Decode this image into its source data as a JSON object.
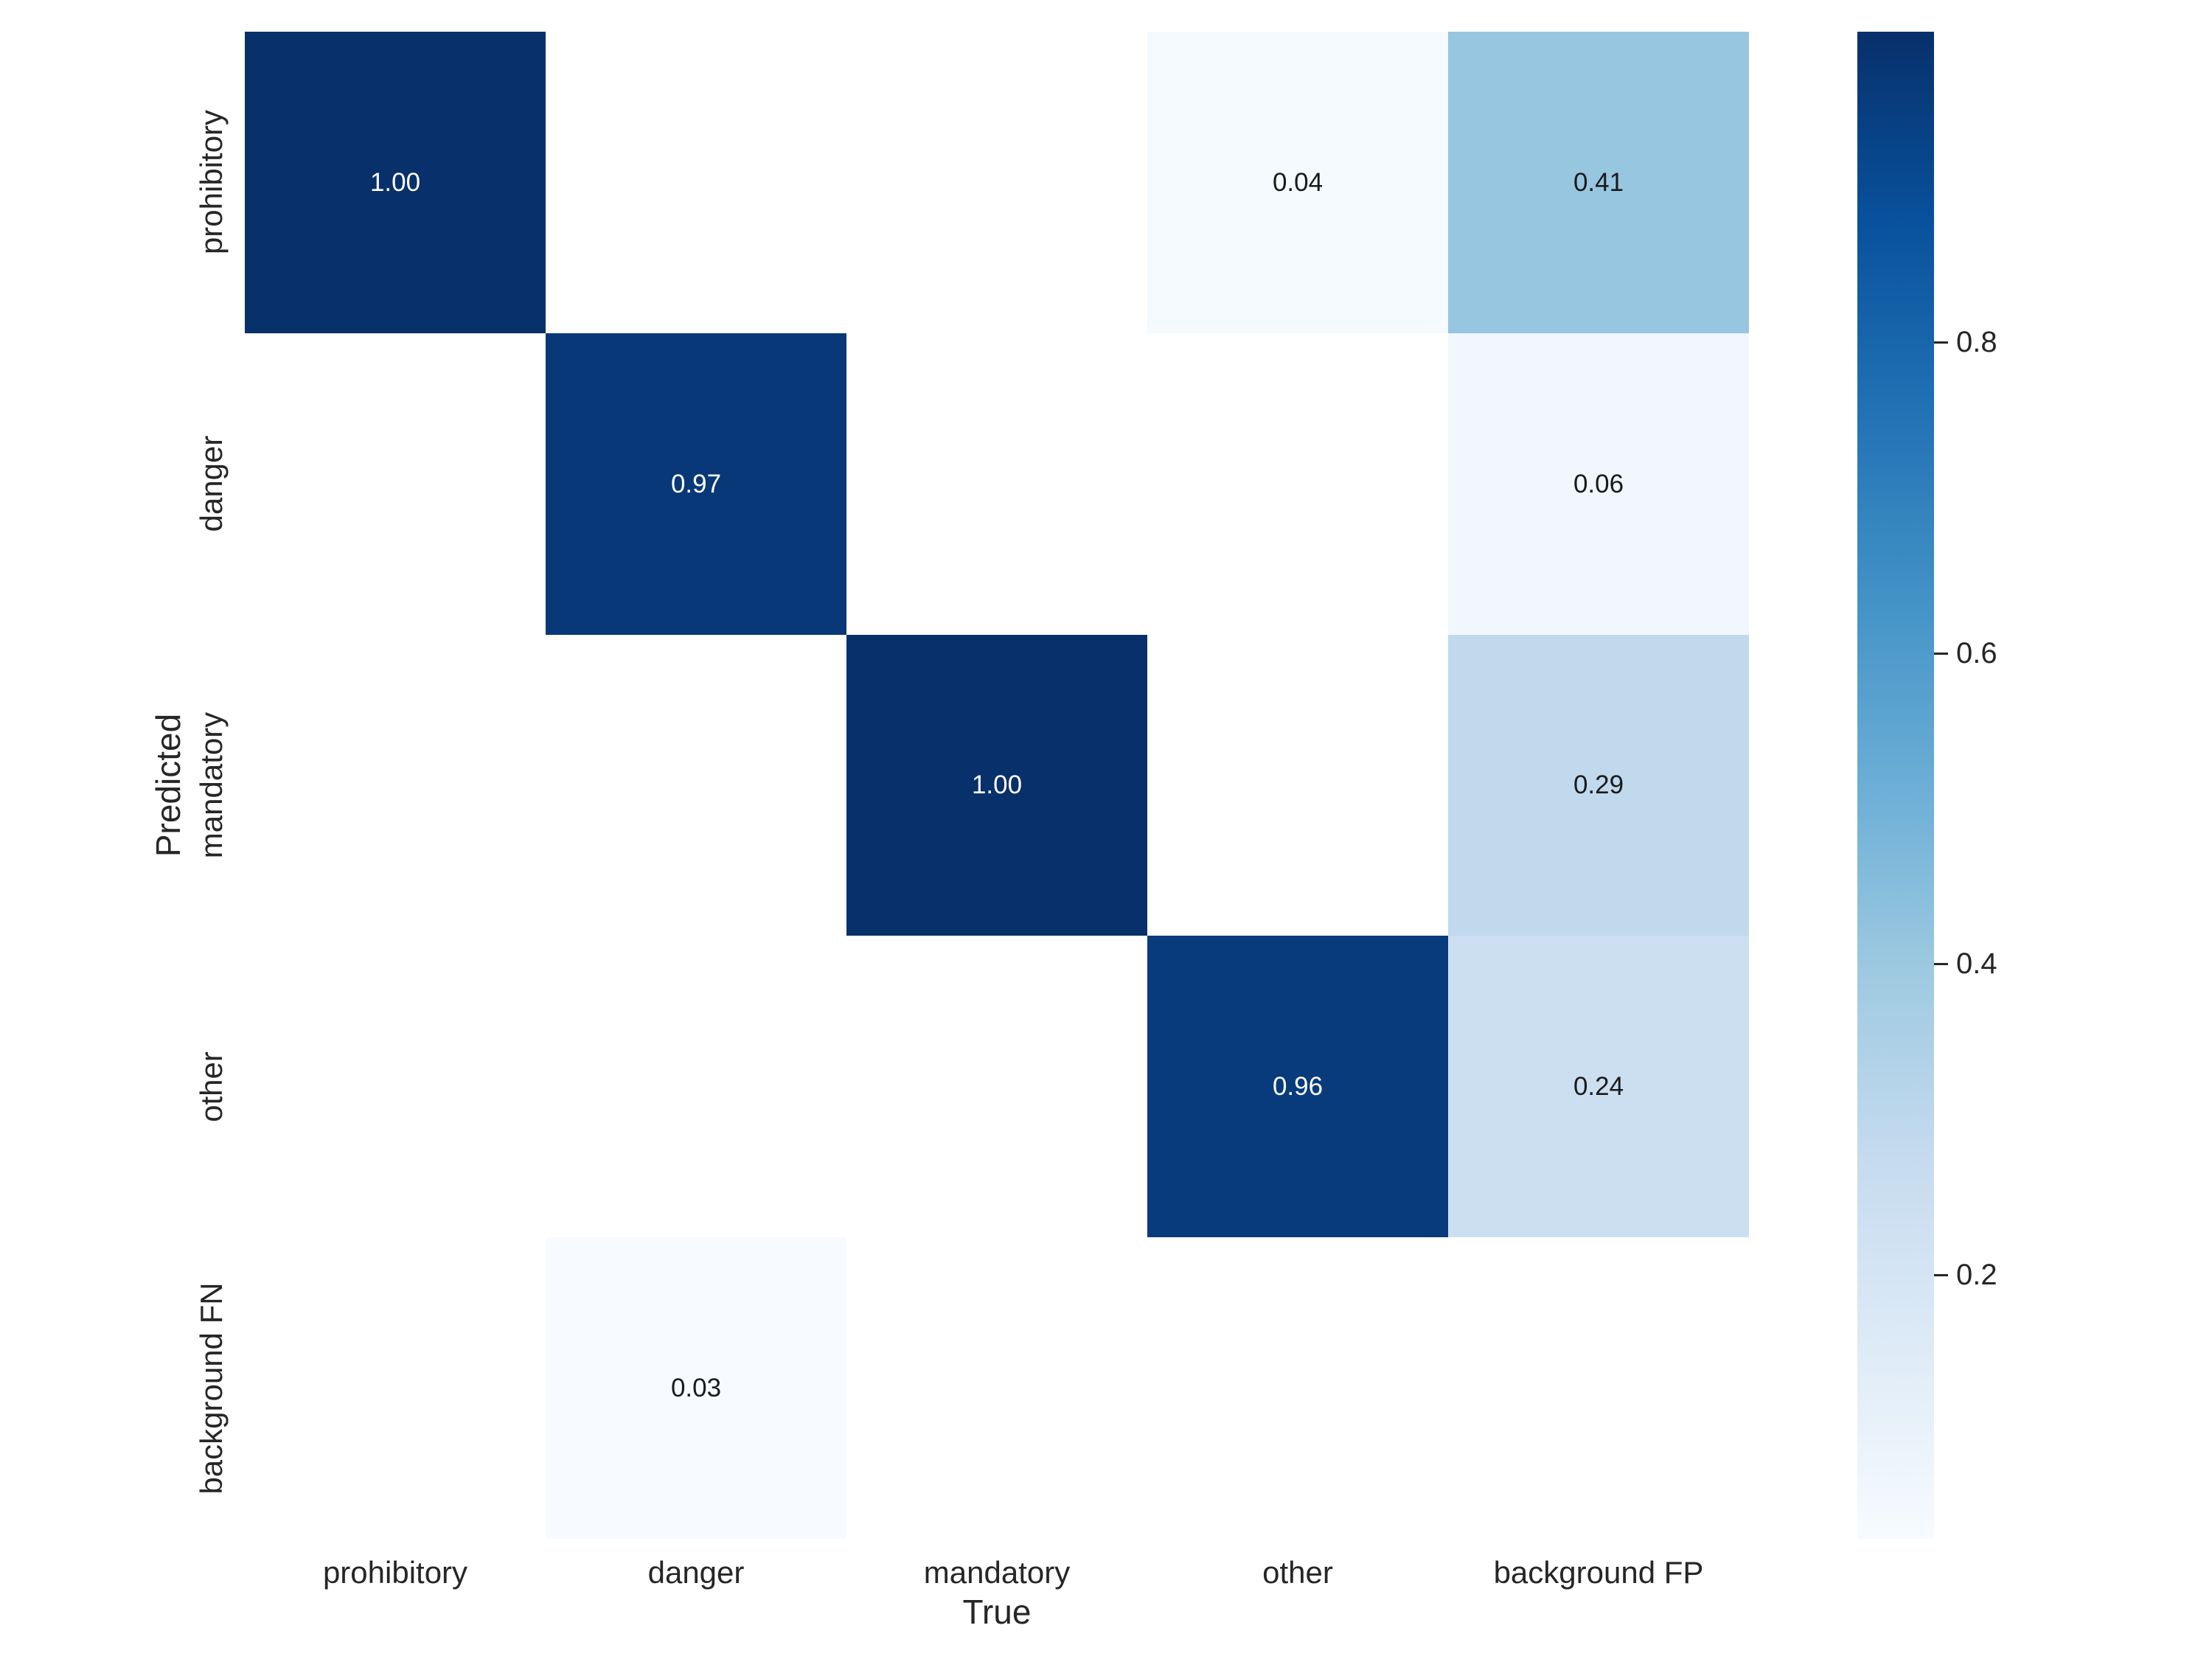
{
  "chart_data": {
    "type": "heatmap",
    "title": "",
    "xlabel": "True",
    "ylabel": "Predicted",
    "x_categories": [
      "prohibitory",
      "danger",
      "mandatory",
      "other",
      "background FP"
    ],
    "y_categories": [
      "prohibitory",
      "danger",
      "mandatory",
      "other",
      "background FN"
    ],
    "matrix": [
      [
        1.0,
        null,
        null,
        0.04,
        0.41
      ],
      [
        null,
        0.97,
        null,
        null,
        0.06
      ],
      [
        null,
        null,
        1.0,
        null,
        0.29
      ],
      [
        null,
        null,
        null,
        0.96,
        0.24
      ],
      [
        null,
        0.03,
        null,
        null,
        null
      ]
    ],
    "cell_colors": [
      [
        "#08306b",
        null,
        null,
        "#f5fafe",
        "#97c6e0"
      ],
      [
        null,
        "#083877",
        null,
        null,
        "#f1f7fd"
      ],
      [
        null,
        null,
        "#08306b",
        null,
        "#c0d9ed"
      ],
      [
        null,
        null,
        null,
        "#083b7b",
        "#ccdff1"
      ],
      [
        null,
        "#f7fbff",
        null,
        null,
        null
      ]
    ],
    "value_format_decimals": 2,
    "annot_color_on_dark": "#ffffff",
    "annot_color_on_light": "#1a1a1a",
    "masked_cell_color": "#ffffff",
    "text_color": "#262626",
    "background_color": "#ffffff",
    "colormap": "Blues",
    "colorbar": {
      "vmin": 0.03,
      "vmax": 1.0,
      "tick_values": [
        0.8,
        0.6,
        0.4,
        0.2
      ],
      "tick_labels": [
        "0.8",
        "0.6",
        "0.4",
        "0.2"
      ],
      "gradient_top_to_bottom": [
        "#08306b",
        "#08519c",
        "#2171b5",
        "#4292c6",
        "#6baed6",
        "#9ecae1",
        "#c6dbef",
        "#deebf7",
        "#f7fbff"
      ]
    }
  }
}
